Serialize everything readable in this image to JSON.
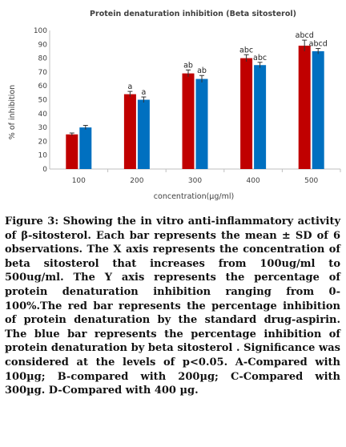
{
  "chart_data": {
    "type": "bar",
    "title": "Protein denaturation inhibition (Beta sitosterol)",
    "xlabel": "concentration(µg/ml)",
    "ylabel": "% of inhibition",
    "ylim": [
      0,
      100
    ],
    "yticks": [
      0,
      10,
      20,
      30,
      40,
      50,
      60,
      70,
      80,
      90,
      100
    ],
    "categories": [
      "100",
      "200",
      "300",
      "400",
      "500"
    ],
    "series": [
      {
        "color": "#c00000",
        "values": [
          25,
          54,
          69,
          80,
          89
        ],
        "errors": [
          1,
          2,
          2.5,
          2.5,
          4
        ],
        "labels": [
          "",
          "a",
          "ab",
          "abc",
          "abcd"
        ]
      },
      {
        "color": "#0070c0",
        "values": [
          30,
          50,
          65,
          75,
          85
        ],
        "errors": [
          1.5,
          2,
          2.5,
          2,
          2
        ],
        "labels": [
          "",
          "a",
          "ab",
          "abc",
          "abcd"
        ]
      }
    ],
    "grid": false,
    "legend": "none"
  },
  "caption": "Figure 3: Showing the in vitro anti-inflammatory activity of β-sitosterol. Each bar represents the mean ± SD of 6 observations. The X axis represents the concentration of beta sitosterol that increases from 100ug/ml to 500ug/ml. The Y axis represents the percentage of protein denaturation inhibition ranging from 0-100%.The red bar represents the percentage inhibition of protein denaturation by the standard drug-aspirin. The blue bar represents the percentage inhibition of protein denaturation by beta sitosterol . Significance was considered at the levels of p<0.05. A-Compared with 100µg; B-compared with 200µg; C-Compared with 300µg. D-Compared with 400 µg."
}
